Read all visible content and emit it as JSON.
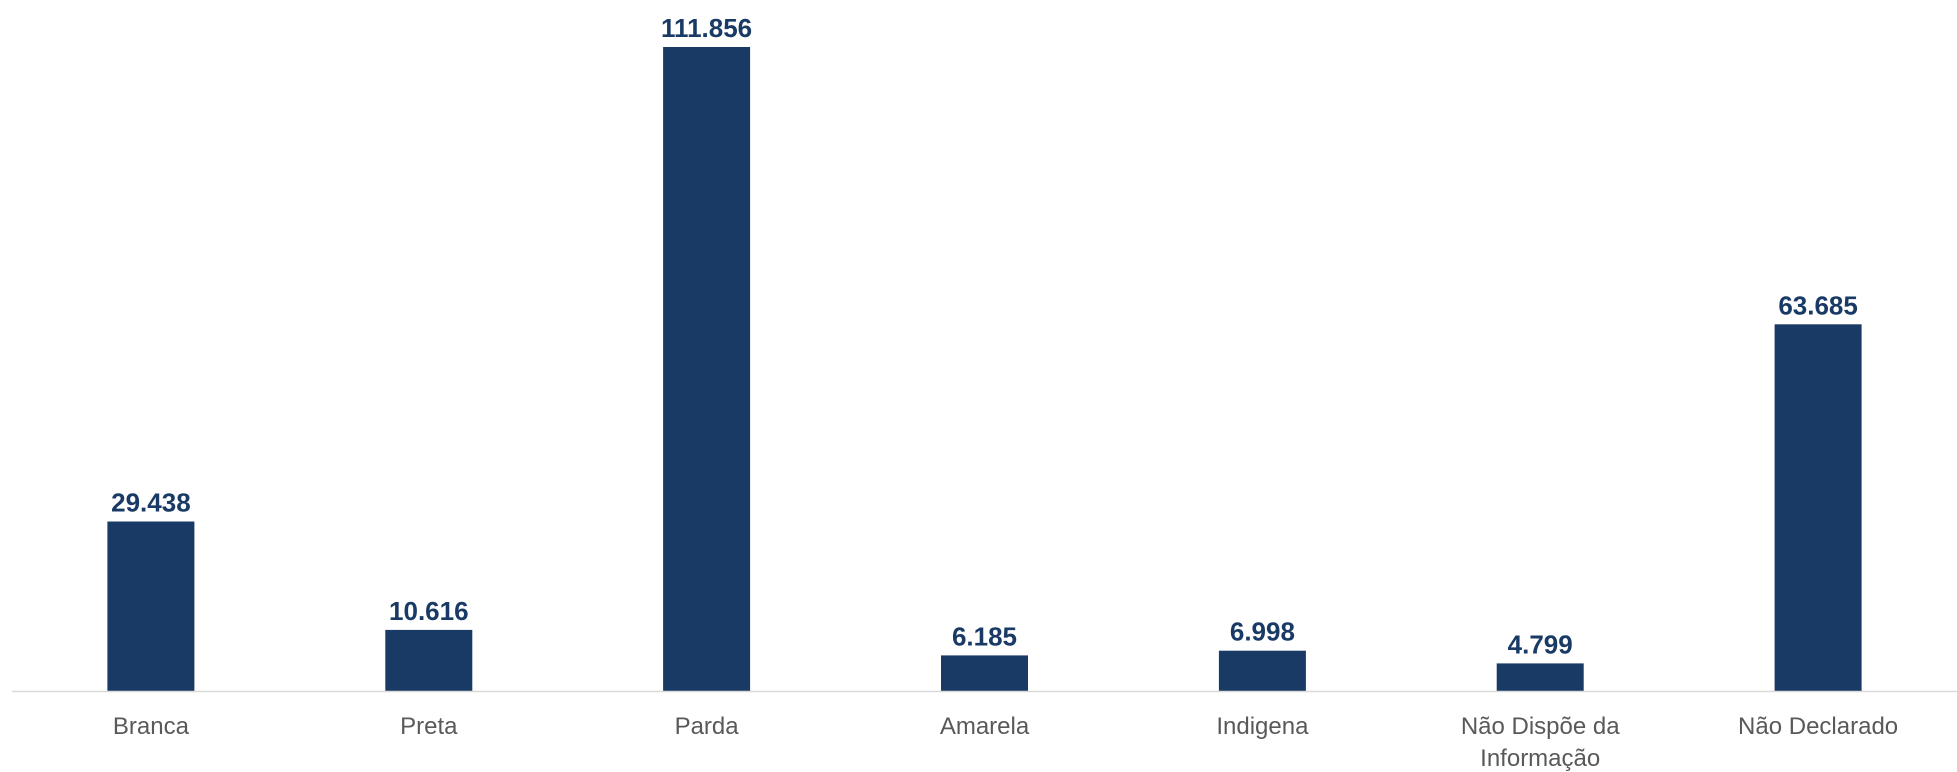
{
  "chart_data": {
    "type": "bar",
    "title": "",
    "xlabel": "",
    "ylabel": "",
    "categories": [
      [
        "Branca"
      ],
      [
        "Preta"
      ],
      [
        "Parda"
      ],
      [
        "Amarela"
      ],
      [
        "Indigena"
      ],
      [
        "Não Dispõe da",
        "Informação"
      ],
      [
        "Não Declarado"
      ]
    ],
    "values": [
      29438,
      10616,
      111856,
      6185,
      6998,
      4799,
      63685
    ],
    "value_labels": [
      "29.438",
      "10.616",
      "111.856",
      "6.185",
      "6.998",
      "4.799",
      "63.685"
    ],
    "ylim": [
      0,
      111856
    ],
    "grid": false,
    "legend": "none",
    "colors": {
      "bar": "#1a3a66",
      "axis": "#d9d9d9",
      "category_text": "#595959",
      "value_text": "#1a3a66"
    }
  }
}
